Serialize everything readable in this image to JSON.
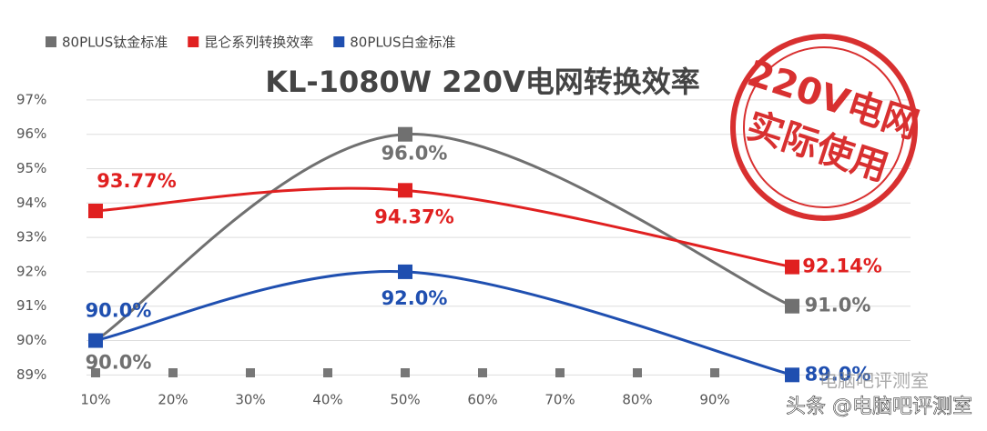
{
  "chart_data": {
    "type": "line",
    "title": "KL-1080W 220V电网转换效率",
    "x": [
      10,
      50,
      100
    ],
    "xlim": [
      10,
      100
    ],
    "xticks": [
      {
        "value": 10,
        "label": "10%"
      },
      {
        "value": 20,
        "label": "20%"
      },
      {
        "value": 30,
        "label": "30%"
      },
      {
        "value": 40,
        "label": "40%"
      },
      {
        "value": 50,
        "label": "50%"
      },
      {
        "value": 60,
        "label": "60%"
      },
      {
        "value": 70,
        "label": "70%"
      },
      {
        "value": 80,
        "label": "80%"
      },
      {
        "value": 90,
        "label": "90%"
      }
    ],
    "ylim": [
      88.4,
      97.5
    ],
    "yticks": [
      {
        "value": 89,
        "label": "89%"
      },
      {
        "value": 90,
        "label": "90%"
      },
      {
        "value": 91,
        "label": "91%"
      },
      {
        "value": 92,
        "label": "92%"
      },
      {
        "value": 93,
        "label": "93%"
      },
      {
        "value": 94,
        "label": "94%"
      },
      {
        "value": 95,
        "label": "95%"
      },
      {
        "value": 96,
        "label": "96%"
      },
      {
        "value": 97,
        "label": "97%"
      }
    ],
    "grid": true,
    "series": [
      {
        "name": "80PLUS钛金标准",
        "color": "#707070",
        "values": [
          90.0,
          96.0,
          91.0
        ],
        "value_labels": [
          "90.0%",
          "96.0%",
          "91.0%"
        ]
      },
      {
        "name": "昆仑系列转换效率",
        "color": "#e02020",
        "values": [
          93.77,
          94.37,
          92.14
        ],
        "value_labels": [
          "93.77%",
          "94.37%",
          "92.14%"
        ]
      },
      {
        "name": "80PLUS白金标准",
        "color": "#1f4fb0",
        "values": [
          90.0,
          92.0,
          89.0
        ],
        "value_labels": [
          "90.0%",
          "92.0%",
          "89.0%"
        ]
      }
    ],
    "stamp": [
      "220V电网",
      "实际使用"
    ],
    "watermarks": [
      "电脑吧评测室",
      "头条 @电脑吧评测室"
    ]
  }
}
